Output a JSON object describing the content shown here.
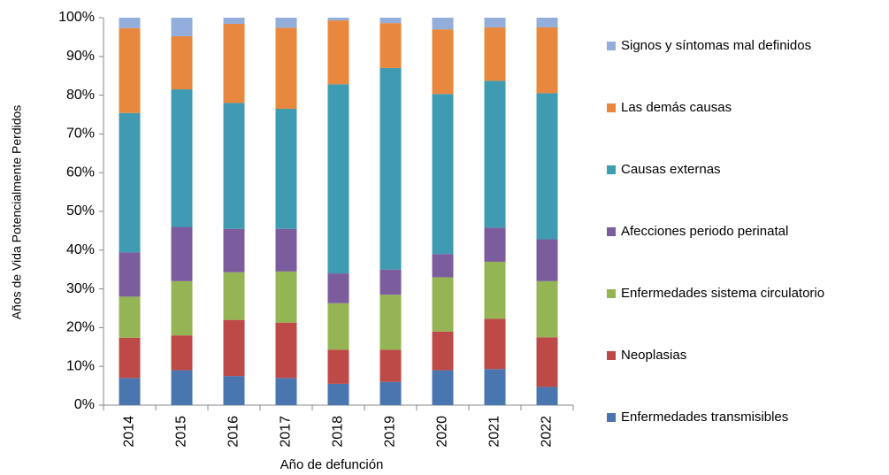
{
  "chart_data": {
    "type": "stacked_bar",
    "y_label": "Años de Vida Potencialmente Perdidos",
    "x_label": "Año de defunción",
    "categories": [
      "2014",
      "2015",
      "2016",
      "2017",
      "2018",
      "2019",
      "2020",
      "2021",
      "2022"
    ],
    "series": [
      {
        "name": "Enfermedades transmisibles",
        "color": "#4a76b0",
        "values": [
          7,
          9,
          7.5,
          7,
          5.5,
          6,
          9,
          9.3,
          4.7
        ]
      },
      {
        "name": "Neoplasias",
        "color": "#bd4a47",
        "values": [
          10.4,
          9,
          14.5,
          14.3,
          8.8,
          8.3,
          10,
          13,
          12.8
        ]
      },
      {
        "name": "Enfermedades sistema circulatorio",
        "color": "#95b555",
        "values": [
          10.6,
          14,
          12.3,
          13.2,
          12,
          14.2,
          14,
          14.7,
          14.5
        ]
      },
      {
        "name": "Afecciones periodo perinatal",
        "color": "#7b5d9e",
        "values": [
          11.4,
          14,
          11.2,
          11,
          7.7,
          6.5,
          6,
          8.8,
          10.8
        ]
      },
      {
        "name": "Causas externas",
        "color": "#3f9bb1",
        "values": [
          36,
          35.5,
          32.5,
          31,
          48.8,
          52,
          41.3,
          37.9,
          37.7
        ]
      },
      {
        "name": "Las demás causas",
        "color": "#e8883e",
        "values": [
          21.9,
          13.7,
          20.4,
          20.9,
          16.5,
          11.6,
          16.7,
          13.8,
          17
        ]
      },
      {
        "name": "Signos y síntomas mal definidos",
        "color": "#94aedb",
        "values": [
          2.7,
          4.8,
          1.6,
          2.6,
          0.7,
          1.4,
          3,
          2.5,
          2.5
        ]
      }
    ],
    "ylim": [
      0,
      100
    ],
    "yticks": [
      {
        "value": 0,
        "label": "0%"
      },
      {
        "value": 10,
        "label": "10%"
      },
      {
        "value": 20,
        "label": "20%"
      },
      {
        "value": 30,
        "label": "30%"
      },
      {
        "value": 40,
        "label": "40%"
      },
      {
        "value": 50,
        "label": "50%"
      },
      {
        "value": 60,
        "label": "60%"
      },
      {
        "value": 70,
        "label": "70%"
      },
      {
        "value": 80,
        "label": "80%"
      },
      {
        "value": 90,
        "label": "90%"
      },
      {
        "value": 100,
        "label": "100%"
      }
    ],
    "grid": false,
    "legend": "right"
  }
}
